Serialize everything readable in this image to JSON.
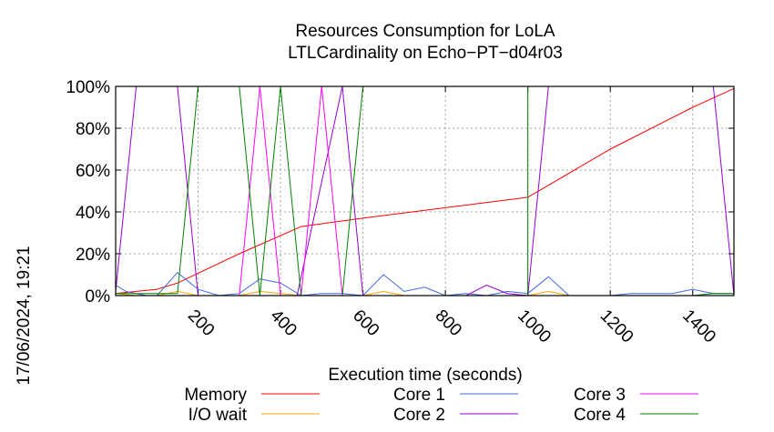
{
  "chart_data": {
    "type": "line",
    "title": "Resources Consumption for LoLA",
    "subtitle": "LTLCardinality on Echo−PT−d04r03",
    "xlabel": "Execution time (seconds)",
    "ylabel": "",
    "timestamp": "17/06/2024, 19:21",
    "xlim": [
      0,
      1500
    ],
    "ylim": [
      0,
      100
    ],
    "x_ticks": [
      200,
      400,
      600,
      800,
      1000,
      1200,
      1400
    ],
    "y_ticks": [
      0,
      20,
      40,
      60,
      80,
      100
    ],
    "y_tick_labels": [
      "0%",
      "20%",
      "40%",
      "60%",
      "80%",
      "100%"
    ],
    "grid": true,
    "legend_position": "bottom",
    "series": [
      {
        "name": "Memory",
        "color": "#ff0000",
        "points": [
          [
            0,
            1
          ],
          [
            50,
            2
          ],
          [
            100,
            3
          ],
          [
            150,
            6
          ],
          [
            300,
            20
          ],
          [
            450,
            33
          ],
          [
            600,
            37
          ],
          [
            800,
            42
          ],
          [
            1000,
            47
          ],
          [
            1200,
            70
          ],
          [
            1400,
            90
          ],
          [
            1500,
            99
          ]
        ]
      },
      {
        "name": "I/O wait",
        "color": "#ffa500",
        "points": [
          [
            0,
            1
          ],
          [
            50,
            0
          ],
          [
            100,
            0
          ],
          [
            150,
            2
          ],
          [
            200,
            0
          ],
          [
            300,
            0
          ],
          [
            350,
            2
          ],
          [
            400,
            1
          ],
          [
            450,
            0
          ],
          [
            500,
            0
          ],
          [
            550,
            0
          ],
          [
            600,
            0
          ],
          [
            650,
            2
          ],
          [
            700,
            0
          ],
          [
            800,
            0
          ],
          [
            900,
            0
          ],
          [
            1000,
            0
          ],
          [
            1050,
            2
          ],
          [
            1100,
            0
          ],
          [
            1200,
            0
          ],
          [
            1300,
            0
          ],
          [
            1400,
            0
          ],
          [
            1450,
            0
          ],
          [
            1500,
            0
          ]
        ]
      },
      {
        "name": "Core 1",
        "color": "#4169e1",
        "points": [
          [
            0,
            5
          ],
          [
            25,
            2
          ],
          [
            50,
            1
          ],
          [
            75,
            0
          ],
          [
            100,
            0
          ],
          [
            150,
            11
          ],
          [
            200,
            3
          ],
          [
            250,
            0
          ],
          [
            300,
            1
          ],
          [
            350,
            8
          ],
          [
            400,
            6
          ],
          [
            450,
            0
          ],
          [
            500,
            1
          ],
          [
            550,
            1
          ],
          [
            600,
            0
          ],
          [
            650,
            10
          ],
          [
            700,
            2
          ],
          [
            750,
            4
          ],
          [
            800,
            0
          ],
          [
            850,
            1
          ],
          [
            900,
            0
          ],
          [
            950,
            2
          ],
          [
            1000,
            1
          ],
          [
            1050,
            9
          ],
          [
            1100,
            0
          ],
          [
            1200,
            0
          ],
          [
            1250,
            1
          ],
          [
            1300,
            1
          ],
          [
            1350,
            1
          ],
          [
            1400,
            3
          ],
          [
            1450,
            1
          ],
          [
            1500,
            1
          ]
        ]
      },
      {
        "name": "Core 2",
        "color": "#9400d3",
        "points": [
          [
            0,
            2
          ],
          [
            50,
            100
          ],
          [
            100,
            100
          ],
          [
            150,
            100
          ],
          [
            200,
            0
          ],
          [
            250,
            0
          ],
          [
            350,
            0
          ],
          [
            400,
            0
          ],
          [
            440,
            0
          ],
          [
            550,
            100
          ],
          [
            600,
            0
          ],
          [
            700,
            0
          ],
          [
            800,
            0
          ],
          [
            850,
            0
          ],
          [
            900,
            5
          ],
          [
            950,
            1
          ],
          [
            1000,
            0
          ],
          [
            1050,
            100
          ],
          [
            1100,
            100
          ],
          [
            1200,
            100
          ],
          [
            1300,
            100
          ],
          [
            1400,
            100
          ],
          [
            1450,
            100
          ],
          [
            1500,
            0
          ]
        ]
      },
      {
        "name": "Core 3",
        "color": "#ff00ff",
        "points": [
          [
            0,
            0
          ],
          [
            300,
            0
          ],
          [
            350,
            100
          ],
          [
            400,
            0
          ],
          [
            450,
            0
          ],
          [
            500,
            100
          ],
          [
            550,
            0
          ],
          [
            600,
            0
          ],
          [
            1500,
            0
          ],
          [
            1500,
            100
          ]
        ]
      },
      {
        "name": "Core 4",
        "color": "#008000",
        "points": [
          [
            0,
            1
          ],
          [
            150,
            1
          ],
          [
            200,
            100
          ],
          [
            250,
            100
          ],
          [
            300,
            100
          ],
          [
            350,
            0
          ],
          [
            400,
            100
          ],
          [
            450,
            0
          ],
          [
            500,
            0
          ],
          [
            550,
            0
          ],
          [
            600,
            100
          ],
          [
            650,
            100
          ],
          [
            700,
            100
          ],
          [
            800,
            100
          ],
          [
            900,
            100
          ],
          [
            1000,
            100
          ],
          [
            1000,
            0
          ],
          [
            1100,
            0
          ],
          [
            1200,
            0
          ],
          [
            1300,
            0
          ],
          [
            1400,
            0
          ],
          [
            1450,
            1
          ],
          [
            1500,
            1
          ]
        ]
      }
    ]
  }
}
